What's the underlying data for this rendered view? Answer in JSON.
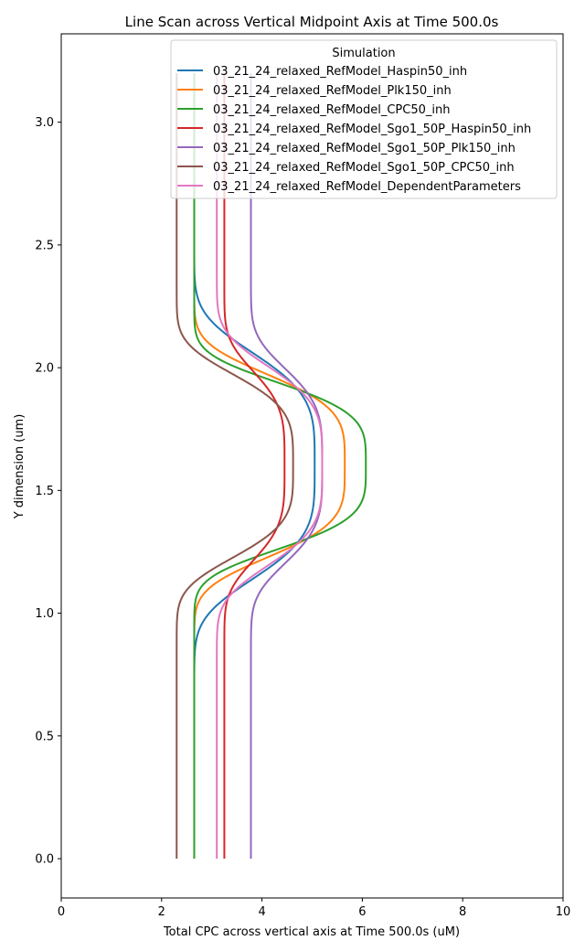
{
  "chart_data": {
    "type": "line",
    "title": "Line Scan across Vertical Midpoint Axis at Time 500.0s",
    "xlabel": "Total CPC across vertical axis at Time 500.0s (uM)",
    "ylabel": "Y dimension (um)",
    "xlim": [
      0,
      10
    ],
    "ylim": [
      -0.16,
      3.36
    ],
    "x_ticks": [
      "0",
      "2",
      "4",
      "6",
      "8",
      "10"
    ],
    "y_ticks": [
      "0.0",
      "0.5",
      "1.0",
      "1.5",
      "2.0",
      "2.5",
      "3.0"
    ],
    "grid": false,
    "legend": {
      "title": "Simulation",
      "placement": "upper-right"
    },
    "series": [
      {
        "name": "03_21_24_relaxed_RefModel_Haspin50_inh",
        "color": "#1f77b4",
        "base": 2.65,
        "peak": 5.05,
        "center": 1.6,
        "width": 0.42
      },
      {
        "name": "03_21_24_relaxed_RefModel_Plk150_inh",
        "color": "#ff7f0e",
        "base": 2.65,
        "peak": 5.65,
        "center": 1.6,
        "width": 0.34
      },
      {
        "name": "03_21_24_relaxed_RefModel_CPC50_inh",
        "color": "#2ca02c",
        "base": 2.65,
        "peak": 6.07,
        "center": 1.6,
        "width": 0.31
      },
      {
        "name": "03_21_24_relaxed_RefModel_Sgo1_50P_Haspin50_inh",
        "color": "#d62728",
        "base": 3.25,
        "peak": 4.45,
        "center": 1.6,
        "width": 0.35
      },
      {
        "name": "03_21_24_relaxed_RefModel_Sgo1_50P_Plk150_inh",
        "color": "#9467bd",
        "base": 3.78,
        "peak": 5.2,
        "center": 1.6,
        "width": 0.36
      },
      {
        "name": "03_21_24_relaxed_RefModel_Sgo1_50P_CPC50_inh",
        "color": "#8c564b",
        "base": 2.3,
        "peak": 4.62,
        "center": 1.6,
        "width": 0.34
      },
      {
        "name": "03_21_24_relaxed_RefModel_DependentParameters",
        "color": "#e377c2",
        "base": 3.1,
        "peak": 5.2,
        "center": 1.6,
        "width": 0.37
      }
    ]
  }
}
